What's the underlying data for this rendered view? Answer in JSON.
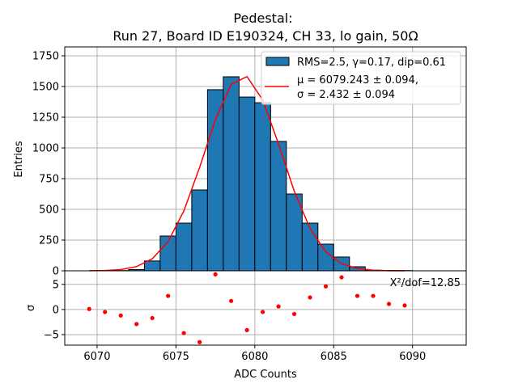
{
  "chart_data": [
    {
      "type": "bar",
      "title_line1": "Pedestal:",
      "title_line2": "Run 27, Board ID E190324, CH 33, lo gain, 50Ω",
      "ylabel": "Entries",
      "xlim": [
        6067.95,
        6093.4
      ],
      "ylim": [
        0,
        1750
      ],
      "yticks": [
        0,
        250,
        500,
        750,
        1000,
        1250,
        1500,
        1750
      ],
      "ytick_labels": [
        "0",
        "250",
        "500",
        "750",
        "1000",
        "1250",
        "1500",
        "1750"
      ],
      "xticks": [
        6070,
        6075,
        6080,
        6085,
        6090
      ],
      "grid": true,
      "legend_position": "top-right",
      "histogram": {
        "label": "RMS=2.5, γ=0.17, dip=0.61",
        "bin_width": 1,
        "bin_left_edges": [
          6071,
          6072,
          6073,
          6074,
          6075,
          6076,
          6077,
          6078,
          6079,
          6080,
          6081,
          6082,
          6083,
          6084,
          6085,
          6086,
          6087,
          6088,
          6089
        ],
        "values": [
          2,
          10,
          80,
          283,
          388,
          658,
          1474,
          1579,
          1414,
          1368,
          1053,
          625,
          388,
          217,
          112,
          33,
          5,
          3,
          2
        ],
        "color": "#1f77b4"
      },
      "fit": {
        "label_line1": "μ = 6079.243 ± 0.094,",
        "label_line2": "σ = 2.432 ± 0.094",
        "x": [
          6069.5,
          6070.5,
          6071.5,
          6072.5,
          6073.5,
          6074.5,
          6075.5,
          6076.5,
          6077.5,
          6078.5,
          6079.5,
          6080.5,
          6081.5,
          6082.5,
          6083.5,
          6084.5,
          6085.5,
          6086.5,
          6087.5,
          6088.5,
          6089.5
        ],
        "y": [
          0.5,
          2.5,
          10,
          34,
          98,
          238,
          487,
          842,
          1230,
          1517,
          1581,
          1391,
          1034,
          648,
          344,
          154,
          58,
          19,
          5,
          1,
          0.2
        ],
        "color": "#ff0000"
      }
    },
    {
      "type": "scatter",
      "xlabel": "ADC Counts",
      "ylabel": "σ",
      "xlim": [
        6067.95,
        6093.4
      ],
      "ylim": [
        -7.1,
        7.7
      ],
      "yticks": [
        -5,
        0,
        5
      ],
      "ytick_labels": [
        "−5",
        "0",
        "5"
      ],
      "xticks": [
        6070,
        6075,
        6080,
        6085,
        6090
      ],
      "xtick_labels": [
        "6070",
        "6075",
        "6080",
        "6085",
        "6090"
      ],
      "annotation": "X²/dof=12.85",
      "x": [
        6069.5,
        6070.5,
        6071.5,
        6072.5,
        6073.5,
        6074.5,
        6075.5,
        6076.5,
        6077.5,
        6078.5,
        6079.5,
        6080.5,
        6081.5,
        6082.5,
        6083.5,
        6084.5,
        6085.5,
        6086.5,
        6087.5,
        6088.5,
        6089.5
      ],
      "y": [
        0.1,
        -0.5,
        -1.2,
        -2.9,
        -1.7,
        2.7,
        -4.7,
        -6.5,
        7.0,
        1.7,
        -4.1,
        -0.5,
        0.6,
        -0.9,
        2.4,
        4.6,
        6.4,
        2.7,
        2.7,
        1.1,
        0.8
      ],
      "color": "#ff0000"
    }
  ]
}
